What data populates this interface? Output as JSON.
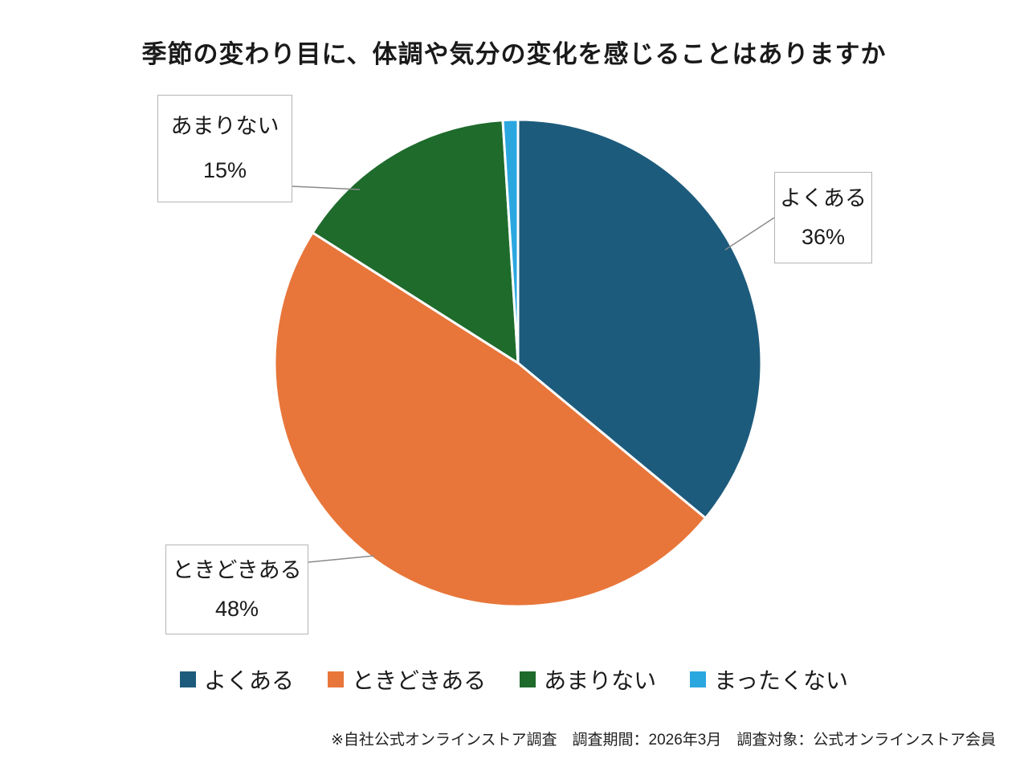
{
  "title": "季節の変わり目に、体調や気分の変化を感じることはありますか",
  "footnote": "※自社公式オンラインストア調査　調査期間：2026年3月　調査対象：公式オンラインストア会員",
  "chart_data": {
    "type": "pie",
    "title": "季節の変わり目に、体調や気分の変化を感じることはありますか",
    "start_angle_deg": 0,
    "direction": "clockwise",
    "legend_position": "bottom",
    "slices": [
      {
        "label": "よくある",
        "value": 36,
        "color": "#1d5b7c"
      },
      {
        "label": "ときどきある",
        "value": 48,
        "color": "#e8763a"
      },
      {
        "label": "あまりない",
        "value": 15,
        "color": "#1e6b2c"
      },
      {
        "label": "まったくない",
        "value": 1,
        "color": "#2ba7e0"
      }
    ],
    "callouts": [
      {
        "label": "あまりない",
        "value_text": "15%"
      },
      {
        "label": "よくある",
        "value_text": "36%"
      },
      {
        "label": "ときどきある",
        "value_text": "48%"
      }
    ]
  }
}
